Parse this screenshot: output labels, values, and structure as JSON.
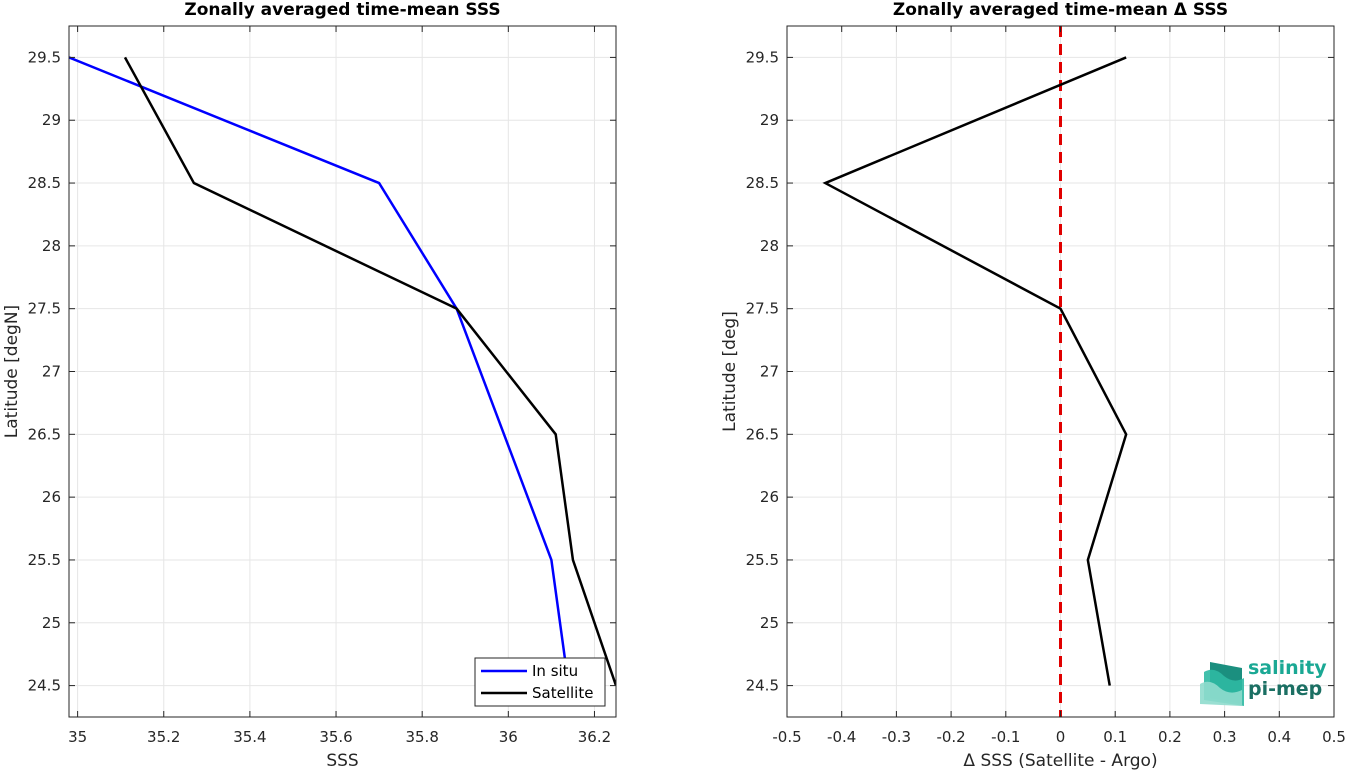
{
  "chart_data": [
    {
      "type": "line",
      "title": "Zonally averaged time-mean SSS",
      "xlabel": "SSS",
      "ylabel": "Latitude [degN]",
      "xlim": [
        34.98,
        36.25
      ],
      "ylim": [
        24.25,
        29.75
      ],
      "xticks": [
        35,
        35.2,
        35.4,
        35.6,
        35.8,
        36,
        36.2
      ],
      "xtick_labels": [
        "35",
        "35.2",
        "35.4",
        "35.6",
        "35.8",
        "36",
        "36.2"
      ],
      "yticks": [
        24.5,
        25,
        25.5,
        26,
        26.5,
        27,
        27.5,
        28,
        28.5,
        29,
        29.5
      ],
      "ytick_labels": [
        "24.5",
        "25",
        "25.5",
        "26",
        "26.5",
        "27",
        "27.5",
        "28",
        "28.5",
        "29",
        "29.5"
      ],
      "grid": true,
      "legend_position": "bottom-right",
      "series": [
        {
          "name": "In situ",
          "color": "#0000ff",
          "x": [
            36.14,
            36.1,
            35.88,
            35.7,
            34.98
          ],
          "y": [
            24.5,
            25.5,
            27.5,
            28.5,
            29.5
          ]
        },
        {
          "name": "Satellite",
          "color": "#000000",
          "x": [
            36.25,
            36.15,
            36.11,
            35.88,
            35.27,
            35.11
          ],
          "y": [
            24.5,
            25.5,
            26.5,
            27.5,
            28.5,
            29.5
          ]
        }
      ]
    },
    {
      "type": "line",
      "title": "Zonally averaged time-mean Δ SSS",
      "xlabel": "Δ SSS (Satellite - Argo)",
      "ylabel": "Latitude [deg]",
      "xlim": [
        -0.5,
        0.5
      ],
      "ylim": [
        24.25,
        29.75
      ],
      "xticks": [
        -0.5,
        -0.4,
        -0.3,
        -0.2,
        -0.1,
        0,
        0.1,
        0.2,
        0.3,
        0.4,
        0.5
      ],
      "xtick_labels": [
        "-0.5",
        "-0.4",
        "-0.3",
        "-0.2",
        "-0.1",
        "0",
        "0.1",
        "0.2",
        "0.3",
        "0.4",
        "0.5"
      ],
      "yticks": [
        24.5,
        25,
        25.5,
        26,
        26.5,
        27,
        27.5,
        28,
        28.5,
        29,
        29.5
      ],
      "ytick_labels": [
        "24.5",
        "25",
        "25.5",
        "26",
        "26.5",
        "27",
        "27.5",
        "28",
        "28.5",
        "29",
        "29.5"
      ],
      "grid": true,
      "zero_line_color": "#e00000",
      "series": [
        {
          "color": "#000000",
          "x": [
            0.09,
            0.05,
            0.12,
            0.0,
            -0.43,
            0.12
          ],
          "y": [
            24.5,
            25.5,
            26.5,
            27.5,
            28.5,
            29.5
          ]
        }
      ]
    }
  ],
  "logo": {
    "line1": "salinity",
    "line2": "pi-mep"
  }
}
